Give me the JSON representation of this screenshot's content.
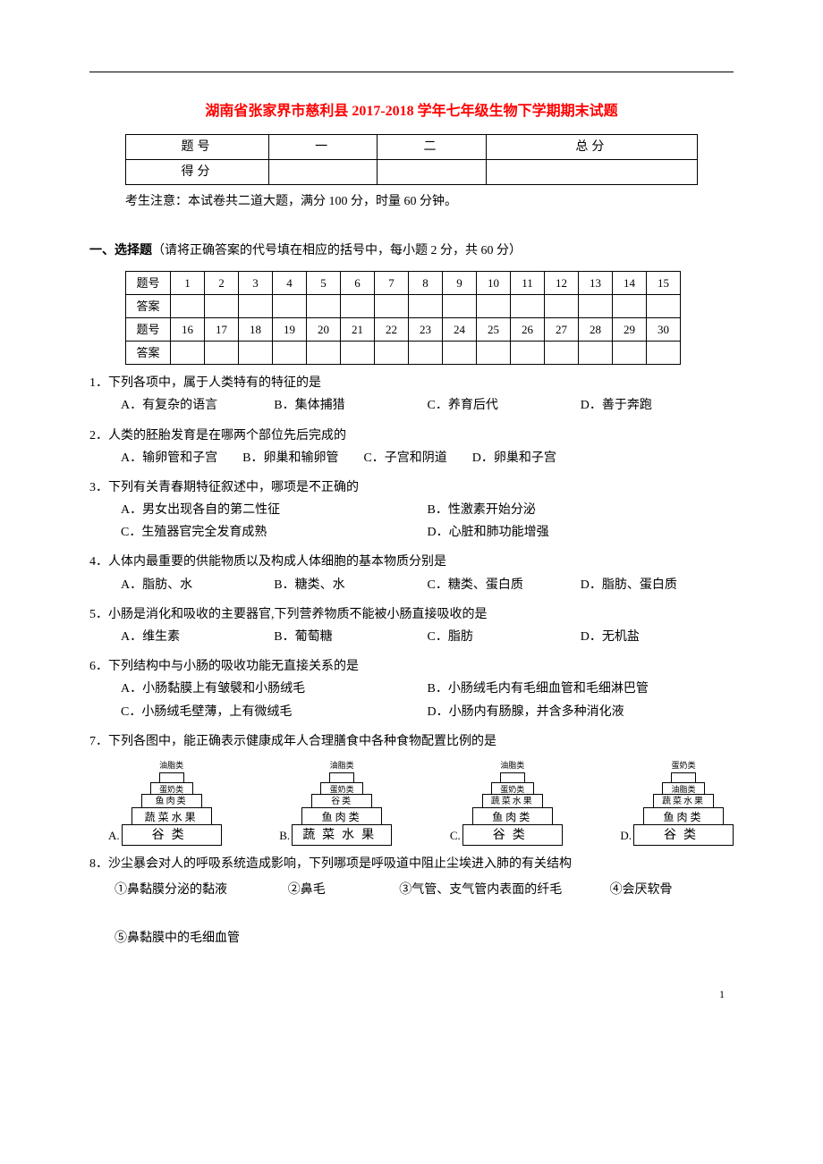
{
  "title": "湖南省张家界市慈利县 2017-2018 学年七年级生物下学期期末试题",
  "title_color": "#ff0000",
  "score_table": {
    "headers": [
      "题号",
      "一",
      "二",
      "总分"
    ],
    "row2_label": "得分"
  },
  "note": "考生注意：本试卷共二道大题，满分 100 分，时量 60 分钟。",
  "section1": {
    "label": "一、选择题",
    "desc": "（请将正确答案的代号填在相应的括号中，每小题 2 分，共 60 分）"
  },
  "answer_table": {
    "row1_label": "题号",
    "row1_nums": [
      "1",
      "2",
      "3",
      "4",
      "5",
      "6",
      "7",
      "8",
      "9",
      "10",
      "11",
      "12",
      "13",
      "14",
      "15"
    ],
    "row2_label": "答案",
    "row3_label": "题号",
    "row3_nums": [
      "16",
      "17",
      "18",
      "19",
      "20",
      "21",
      "22",
      "23",
      "24",
      "25",
      "26",
      "27",
      "28",
      "29",
      "30"
    ],
    "row4_label": "答案"
  },
  "questions": [
    {
      "num": "1．",
      "stem": "下列各项中，属于人类特有的特征的是",
      "opts": [
        "A．有复杂的语言",
        "B．集体捕猎",
        "C．养育后代",
        "D．善于奔跑"
      ],
      "layout": "4"
    },
    {
      "num": "2．",
      "stem": "人类的胚胎发育是在哪两个部位先后完成的",
      "opts": [
        "A．输卵管和子宫",
        "B．卵巢和输卵管",
        "C．子宫和阴道",
        "D．卵巢和子宫"
      ],
      "layout": "4b"
    },
    {
      "num": "3．",
      "stem": "下列有关青春期特征叙述中，哪项是不正确的",
      "opts": [
        "A．男女出现各自的第二性征",
        "B．性激素开始分泌",
        "C．生殖器官完全发育成熟",
        "D．心脏和肺功能增强"
      ],
      "layout": "2"
    },
    {
      "num": "4．",
      "stem": "人体内最重要的供能物质以及构成人体细胞的基本物质分别是",
      "opts": [
        "A．脂肪、水",
        "B．糖类、水",
        "C．糖类、蛋白质",
        "D．脂肪、蛋白质"
      ],
      "layout": "4"
    },
    {
      "num": "5．",
      "stem": "小肠是消化和吸收的主要器官,下列营养物质不能被小肠直接吸收的是",
      "opts": [
        "A．维生素",
        "B．葡萄糖",
        "C．脂肪",
        "D．无机盐"
      ],
      "layout": "4"
    },
    {
      "num": "6．",
      "stem": "下列结构中与小肠的吸收功能无直接关系的是",
      "opts": [
        "A．小肠黏膜上有皱襞和小肠绒毛",
        "B．小肠绒毛内有毛细血管和毛细淋巴管",
        "C．小肠绒毛壁薄，上有微绒毛",
        "D．小肠内有肠腺，并含多种消化液"
      ],
      "layout": "2"
    },
    {
      "num": "7．",
      "stem": "下列各图中，能正确表示健康成年人合理膳食中各种食物配置比例的是"
    },
    {
      "num": "8．",
      "stem": "沙尘暴会对人的呼吸系统造成影响，下列哪项是呼吸道中阻止尘埃进入肺的有关结构"
    }
  ],
  "pyramids": [
    {
      "label": "A.",
      "top": "油脂类",
      "levels": [
        "蛋奶类",
        "鱼肉类",
        "蔬菜水果",
        "谷类"
      ]
    },
    {
      "label": "B.",
      "top": "油脂类",
      "levels": [
        "蛋奶类",
        "谷类",
        "鱼肉类",
        "蔬菜水果"
      ]
    },
    {
      "label": "C.",
      "top": "油脂类",
      "levels": [
        "蛋奶类",
        "蔬菜水果",
        "鱼肉类",
        "谷类"
      ]
    },
    {
      "label": "D.",
      "top": "蛋奶类",
      "levels": [
        "油脂类",
        "蔬菜水果",
        "鱼肉类",
        "谷类"
      ]
    }
  ],
  "q8_items": [
    "①鼻黏膜分泌的黏液",
    "②鼻毛",
    "③气管、支气管内表面的纤毛",
    "④会厌软骨",
    "⑤鼻黏膜中的毛细血管"
  ],
  "page_number": "1"
}
